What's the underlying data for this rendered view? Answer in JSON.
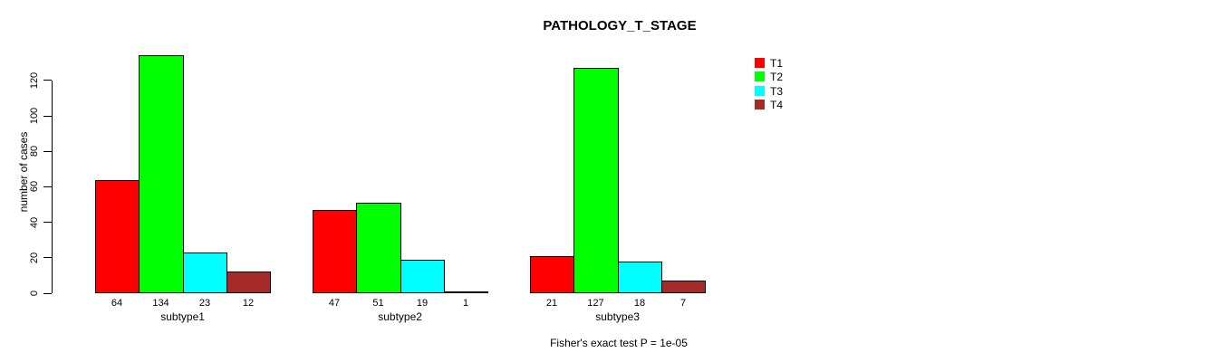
{
  "title": "PATHOLOGY_T_STAGE",
  "footer": "Fisher's exact test P = 1e-05",
  "legend": {
    "position": "right"
  },
  "chart_data": {
    "type": "bar",
    "grouped": true,
    "title": "PATHOLOGY_T_STAGE",
    "xlabel": "",
    "ylabel": "number of cases",
    "categories": [
      "subtype1",
      "subtype2",
      "subtype3"
    ],
    "series": [
      {
        "name": "T1",
        "color": "#FF0000",
        "values": [
          64,
          47,
          21
        ]
      },
      {
        "name": "T2",
        "color": "#00FF00",
        "values": [
          134,
          51,
          127
        ]
      },
      {
        "name": "T3",
        "color": "#00FFFF",
        "values": [
          23,
          19,
          18
        ]
      },
      {
        "name": "T4",
        "color": "#A52A2A",
        "values": [
          12,
          1,
          7
        ]
      }
    ],
    "bar_value_labels_shown": true,
    "yticks": [
      "0",
      "20",
      "40",
      "60",
      "80",
      "100",
      "120"
    ],
    "ytick_values": [
      0,
      20,
      40,
      60,
      80,
      100,
      120
    ],
    "ylim": [
      0,
      134
    ],
    "grid": false,
    "legend_entries": [
      "T1",
      "T2",
      "T3",
      "T4"
    ],
    "legend_position": "right",
    "annotation": "Fisher's exact test P = 1e-05"
  }
}
